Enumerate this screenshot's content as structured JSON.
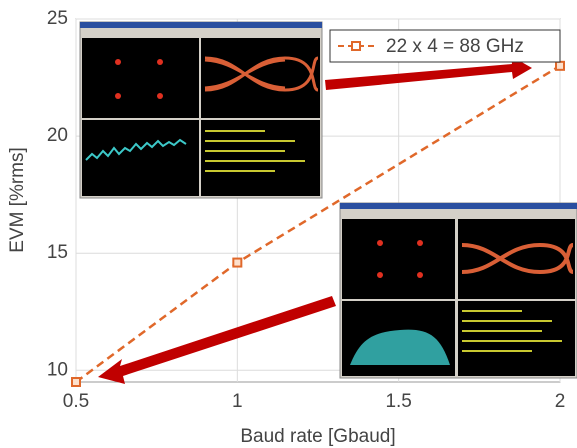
{
  "chart_data": {
    "type": "line",
    "x_label": "Baud rate [Gbaud]",
    "y_label": "EVM [%rms]",
    "x": [
      0.5,
      1,
      2
    ],
    "series": [
      {
        "name": "22 x 4 = 88 GHz",
        "color": "#e0682a",
        "values": [
          9.5,
          14.6,
          23.0
        ]
      }
    ],
    "xlim": [
      0.5,
      2
    ],
    "xticks": [
      0.5,
      1,
      1.5,
      2
    ],
    "ylim": [
      9.5,
      25
    ],
    "yticks": [
      10,
      15,
      20,
      25
    ],
    "grid": true,
    "legend": "upper right"
  }
}
